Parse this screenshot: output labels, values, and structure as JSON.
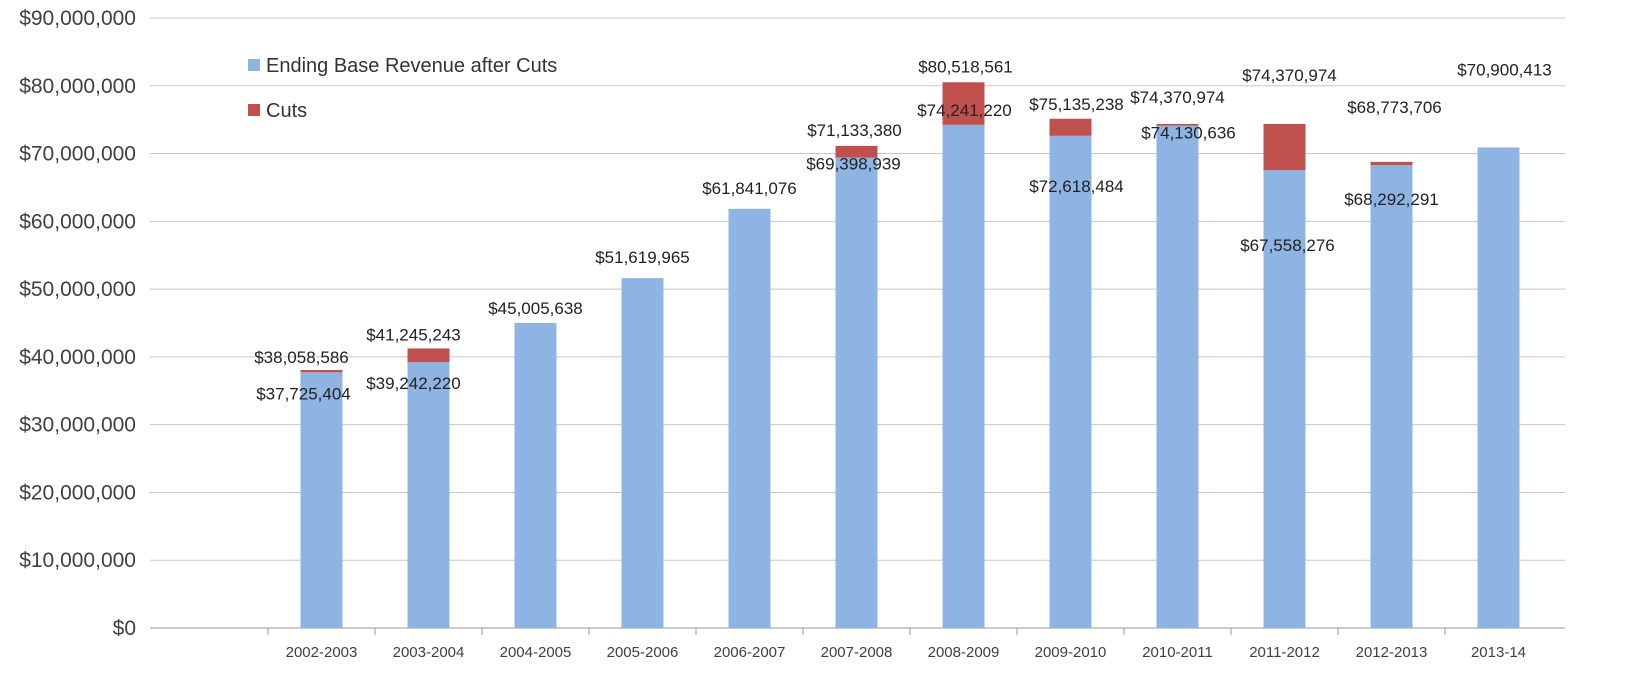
{
  "chart_data": {
    "type": "bar",
    "stacked": true,
    "categories": [
      "2002-2003",
      "2003-2004",
      "2004-2005",
      "2005-2006",
      "2006-2007",
      "2007-2008",
      "2008-2009",
      "2009-2010",
      "2010-2011",
      "2011-2012",
      "2012-2013",
      "2013-14"
    ],
    "series": [
      {
        "name": "Ending Base Revenue after Cuts",
        "color": "#8db4e2",
        "values": [
          37725404,
          39242220,
          45005638,
          51619965,
          61841076,
          69398939,
          74241220,
          72618484,
          74130636,
          67558276,
          68292291,
          70900413
        ]
      },
      {
        "name": "Cuts",
        "color": "#c0504d",
        "values": [
          333182,
          2003023,
          0,
          0,
          0,
          1734441,
          6277341,
          2516754,
          240338,
          6812698,
          481415,
          0
        ]
      }
    ],
    "totals": [
      38058586,
      41245243,
      45005638,
      51619965,
      61841076,
      71133380,
      80518561,
      75135238,
      74370974,
      74370974,
      68773706,
      70900413
    ],
    "top_labels": [
      "$38,058,586",
      "$41,245,243",
      "$45,005,638",
      "$51,619,965",
      "$61,841,076",
      "$71,133,380",
      "$80,518,561",
      "$75,135,238",
      "$74,370,974",
      "$74,370,974",
      "$68,773,706",
      "$70,900,413"
    ],
    "base_labels": [
      "$37,725,404",
      "$39,242,220",
      "",
      "",
      "",
      "$69,398,939",
      "$74,241,220",
      "$72,618,484",
      "$74,130,636",
      "$67,558,276",
      "$68,292,291",
      ""
    ],
    "yticks": [
      "$0",
      "$10,000,000",
      "$20,000,000",
      "$30,000,000",
      "$40,000,000",
      "$50,000,000",
      "$60,000,000",
      "$70,000,000",
      "$80,000,000",
      "$90,000,000"
    ],
    "ylim": [
      0,
      90000000
    ],
    "grid": true,
    "legend": "top-left",
    "title": "",
    "xlabel": "",
    "ylabel": ""
  }
}
